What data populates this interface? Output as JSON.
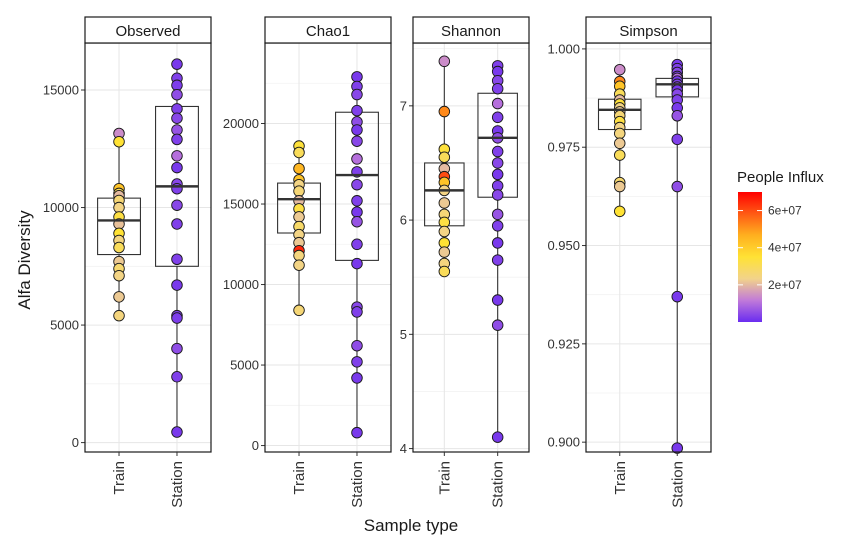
{
  "figure": {
    "xlabel": "Sample type",
    "ylabel": "Alfa Diversity"
  },
  "legend": {
    "title": "People Influx",
    "min": 0,
    "max": 70000000,
    "ticks": [
      {
        "value": 20000000,
        "label": "2e+07"
      },
      {
        "value": 40000000,
        "label": "4e+07"
      },
      {
        "value": 60000000,
        "label": "6e+07"
      }
    ],
    "colors": [
      "#6a2cf0",
      "#c17ad9",
      "#f2d38a",
      "#ffe234",
      "#ffb01f",
      "#ff5a14",
      "#ff0000"
    ]
  },
  "chart_data": [
    {
      "type": "box",
      "title": "Observed",
      "categories": [
        "Train",
        "Station"
      ],
      "ylim": [
        -400,
        17000
      ],
      "yticks": [
        0,
        5000,
        10000,
        15000
      ],
      "ytick_labels": [
        "0",
        "5000",
        "10000",
        "15000"
      ],
      "boxes": [
        {
          "category": "Train",
          "q1": 8000,
          "median": 9450,
          "q3": 10400,
          "whisker_low": 5400,
          "whisker_high": 13150
        },
        {
          "category": "Station",
          "q1": 7500,
          "median": 10900,
          "q3": 14300,
          "whisker_low": 450,
          "whisker_high": 16100
        }
      ],
      "points": [
        {
          "category": "Train",
          "y": 13150,
          "influx": 14000000
        },
        {
          "category": "Train",
          "y": 12800,
          "influx": 35000000
        },
        {
          "category": "Train",
          "y": 10800,
          "influx": 42000000
        },
        {
          "category": "Train",
          "y": 10600,
          "influx": 30000000
        },
        {
          "category": "Train",
          "y": 10500,
          "influx": 20000000
        },
        {
          "category": "Train",
          "y": 10300,
          "influx": 26000000
        },
        {
          "category": "Train",
          "y": 10000,
          "influx": 24000000
        },
        {
          "category": "Train",
          "y": 9600,
          "influx": 33000000
        },
        {
          "category": "Train",
          "y": 9300,
          "influx": 21000000
        },
        {
          "category": "Train",
          "y": 8900,
          "influx": 35000000
        },
        {
          "category": "Train",
          "y": 8600,
          "influx": 25000000
        },
        {
          "category": "Train",
          "y": 8300,
          "influx": 30000000
        },
        {
          "category": "Train",
          "y": 7700,
          "influx": 22000000
        },
        {
          "category": "Train",
          "y": 7400,
          "influx": 27000000
        },
        {
          "category": "Train",
          "y": 7100,
          "influx": 24000000
        },
        {
          "category": "Train",
          "y": 6200,
          "influx": 22000000
        },
        {
          "category": "Train",
          "y": 5400,
          "influx": 25000000
        },
        {
          "category": "Station",
          "y": 16100,
          "influx": 2000000
        },
        {
          "category": "Station",
          "y": 15500,
          "influx": 3000000
        },
        {
          "category": "Station",
          "y": 15200,
          "influx": 2500000
        },
        {
          "category": "Station",
          "y": 14800,
          "influx": 5000000
        },
        {
          "category": "Station",
          "y": 14200,
          "influx": 3000000
        },
        {
          "category": "Station",
          "y": 13800,
          "influx": 4000000
        },
        {
          "category": "Station",
          "y": 13300,
          "influx": 6000000
        },
        {
          "category": "Station",
          "y": 12900,
          "influx": 3000000
        },
        {
          "category": "Station",
          "y": 12200,
          "influx": 10000000
        },
        {
          "category": "Station",
          "y": 11700,
          "influx": 2000000
        },
        {
          "category": "Station",
          "y": 11000,
          "influx": 4000000
        },
        {
          "category": "Station",
          "y": 10800,
          "influx": 3000000
        },
        {
          "category": "Station",
          "y": 10100,
          "influx": 4000000
        },
        {
          "category": "Station",
          "y": 9300,
          "influx": 3000000
        },
        {
          "category": "Station",
          "y": 7800,
          "influx": 3000000
        },
        {
          "category": "Station",
          "y": 6700,
          "influx": 2000000
        },
        {
          "category": "Station",
          "y": 5400,
          "influx": 3000000
        },
        {
          "category": "Station",
          "y": 5300,
          "influx": 2500000
        },
        {
          "category": "Station",
          "y": 4000,
          "influx": 5000000
        },
        {
          "category": "Station",
          "y": 2800,
          "influx": 3000000
        },
        {
          "category": "Station",
          "y": 450,
          "influx": 2000000
        }
      ]
    },
    {
      "type": "box",
      "title": "Chao1",
      "categories": [
        "Train",
        "Station"
      ],
      "ylim": [
        -400,
        25000
      ],
      "yticks": [
        0,
        5000,
        10000,
        15000,
        20000
      ],
      "ytick_labels": [
        "0",
        "5000",
        "10000",
        "15000",
        "20000"
      ],
      "boxes": [
        {
          "category": "Train",
          "q1": 13200,
          "median": 15300,
          "q3": 16300,
          "whisker_low": 8400,
          "whisker_high": 18600
        },
        {
          "category": "Station",
          "q1": 11500,
          "median": 16800,
          "q3": 20700,
          "whisker_low": 800,
          "whisker_high": 22900
        }
      ],
      "points": [
        {
          "category": "Train",
          "y": 18600,
          "influx": 34000000
        },
        {
          "category": "Train",
          "y": 18200,
          "influx": 30000000
        },
        {
          "category": "Train",
          "y": 17200,
          "influx": 45000000
        },
        {
          "category": "Train",
          "y": 16500,
          "influx": 42000000
        },
        {
          "category": "Train",
          "y": 16200,
          "influx": 24000000
        },
        {
          "category": "Train",
          "y": 15800,
          "influx": 26000000
        },
        {
          "category": "Train",
          "y": 15200,
          "influx": 20000000
        },
        {
          "category": "Train",
          "y": 14700,
          "influx": 33000000
        },
        {
          "category": "Train",
          "y": 14200,
          "influx": 22000000
        },
        {
          "category": "Train",
          "y": 13600,
          "influx": 28000000
        },
        {
          "category": "Train",
          "y": 13100,
          "influx": 24000000
        },
        {
          "category": "Train",
          "y": 12600,
          "influx": 22000000
        },
        {
          "category": "Train",
          "y": 12100,
          "influx": 65000000
        },
        {
          "category": "Train",
          "y": 11800,
          "influx": 25000000
        },
        {
          "category": "Train",
          "y": 11200,
          "influx": 24000000
        },
        {
          "category": "Train",
          "y": 8400,
          "influx": 26000000
        },
        {
          "category": "Station",
          "y": 22900,
          "influx": 2000000
        },
        {
          "category": "Station",
          "y": 22300,
          "influx": 3000000
        },
        {
          "category": "Station",
          "y": 21800,
          "influx": 4000000
        },
        {
          "category": "Station",
          "y": 20800,
          "influx": 3000000
        },
        {
          "category": "Station",
          "y": 20100,
          "influx": 5000000
        },
        {
          "category": "Station",
          "y": 19600,
          "influx": 2000000
        },
        {
          "category": "Station",
          "y": 18900,
          "influx": 4000000
        },
        {
          "category": "Station",
          "y": 17800,
          "influx": 10000000
        },
        {
          "category": "Station",
          "y": 17000,
          "influx": 3000000
        },
        {
          "category": "Station",
          "y": 16200,
          "influx": 4000000
        },
        {
          "category": "Station",
          "y": 15200,
          "influx": 3000000
        },
        {
          "category": "Station",
          "y": 14500,
          "influx": 2000000
        },
        {
          "category": "Station",
          "y": 13900,
          "influx": 6000000
        },
        {
          "category": "Station",
          "y": 12500,
          "influx": 3000000
        },
        {
          "category": "Station",
          "y": 11300,
          "influx": 2000000
        },
        {
          "category": "Station",
          "y": 8600,
          "influx": 4000000
        },
        {
          "category": "Station",
          "y": 8300,
          "influx": 3000000
        },
        {
          "category": "Station",
          "y": 6200,
          "influx": 5000000
        },
        {
          "category": "Station",
          "y": 5200,
          "influx": 3000000
        },
        {
          "category": "Station",
          "y": 4200,
          "influx": 2000000
        },
        {
          "category": "Station",
          "y": 800,
          "influx": 2000000
        }
      ]
    },
    {
      "type": "box",
      "title": "Shannon",
      "categories": [
        "Train",
        "Station"
      ],
      "ylim": [
        3.97,
        7.55
      ],
      "yticks": [
        4,
        5,
        6,
        7
      ],
      "ytick_labels": [
        "4",
        "5",
        "6",
        "7"
      ],
      "boxes": [
        {
          "category": "Train",
          "q1": 5.95,
          "median": 6.26,
          "q3": 6.5,
          "whisker_low": 5.55,
          "whisker_high": 7.39
        },
        {
          "category": "Station",
          "q1": 6.2,
          "median": 6.72,
          "q3": 7.11,
          "whisker_low": 4.1,
          "whisker_high": 7.35
        }
      ],
      "points": [
        {
          "category": "Train",
          "y": 7.39,
          "influx": 14000000
        },
        {
          "category": "Train",
          "y": 6.95,
          "influx": 52000000
        },
        {
          "category": "Train",
          "y": 6.62,
          "influx": 34000000
        },
        {
          "category": "Train",
          "y": 6.55,
          "influx": 30000000
        },
        {
          "category": "Train",
          "y": 6.45,
          "influx": 20000000
        },
        {
          "category": "Train",
          "y": 6.38,
          "influx": 60000000
        },
        {
          "category": "Train",
          "y": 6.33,
          "influx": 42000000
        },
        {
          "category": "Train",
          "y": 6.26,
          "influx": 24000000
        },
        {
          "category": "Train",
          "y": 6.15,
          "influx": 22000000
        },
        {
          "category": "Train",
          "y": 6.05,
          "influx": 26000000
        },
        {
          "category": "Train",
          "y": 5.98,
          "influx": 33000000
        },
        {
          "category": "Train",
          "y": 5.9,
          "influx": 24000000
        },
        {
          "category": "Train",
          "y": 5.8,
          "influx": 35000000
        },
        {
          "category": "Train",
          "y": 5.72,
          "influx": 22000000
        },
        {
          "category": "Train",
          "y": 5.62,
          "influx": 25000000
        },
        {
          "category": "Train",
          "y": 5.55,
          "influx": 30000000
        },
        {
          "category": "Station",
          "y": 7.35,
          "influx": 3000000
        },
        {
          "category": "Station",
          "y": 7.3,
          "influx": 2000000
        },
        {
          "category": "Station",
          "y": 7.22,
          "influx": 4000000
        },
        {
          "category": "Station",
          "y": 7.15,
          "influx": 3000000
        },
        {
          "category": "Station",
          "y": 7.02,
          "influx": 10000000
        },
        {
          "category": "Station",
          "y": 6.9,
          "influx": 3000000
        },
        {
          "category": "Station",
          "y": 6.78,
          "influx": 2000000
        },
        {
          "category": "Station",
          "y": 6.72,
          "influx": 5000000
        },
        {
          "category": "Station",
          "y": 6.6,
          "influx": 3000000
        },
        {
          "category": "Station",
          "y": 6.5,
          "influx": 4000000
        },
        {
          "category": "Station",
          "y": 6.4,
          "influx": 2000000
        },
        {
          "category": "Station",
          "y": 6.3,
          "influx": 3000000
        },
        {
          "category": "Station",
          "y": 6.22,
          "influx": 4000000
        },
        {
          "category": "Station",
          "y": 6.05,
          "influx": 6000000
        },
        {
          "category": "Station",
          "y": 5.95,
          "influx": 3000000
        },
        {
          "category": "Station",
          "y": 5.8,
          "influx": 2000000
        },
        {
          "category": "Station",
          "y": 5.65,
          "influx": 3000000
        },
        {
          "category": "Station",
          "y": 5.3,
          "influx": 2000000
        },
        {
          "category": "Station",
          "y": 5.08,
          "influx": 5000000
        },
        {
          "category": "Station",
          "y": 4.1,
          "influx": 2000000
        }
      ]
    },
    {
      "type": "box",
      "title": "Simpson",
      "categories": [
        "Train",
        "Station"
      ],
      "ylim": [
        0.8975,
        1.0015
      ],
      "yticks": [
        0.9,
        0.925,
        0.95,
        0.975,
        1.0
      ],
      "ytick_labels": [
        "0.900",
        "0.925",
        "0.950",
        "0.975",
        "1.000"
      ],
      "boxes": [
        {
          "category": "Train",
          "q1": 0.9795,
          "median": 0.9845,
          "q3": 0.9872,
          "whisker_low": 0.9587,
          "whisker_high": 0.9947
        },
        {
          "category": "Station",
          "q1": 0.9878,
          "median": 0.991,
          "q3": 0.9925,
          "whisker_low": 0.8985,
          "whisker_high": 0.996
        }
      ],
      "points": [
        {
          "category": "Train",
          "y": 0.9947,
          "influx": 14000000
        },
        {
          "category": "Train",
          "y": 0.9917,
          "influx": 52000000
        },
        {
          "category": "Train",
          "y": 0.9905,
          "influx": 42000000
        },
        {
          "category": "Train",
          "y": 0.9885,
          "influx": 30000000
        },
        {
          "category": "Train",
          "y": 0.987,
          "influx": 20000000
        },
        {
          "category": "Train",
          "y": 0.986,
          "influx": 34000000
        },
        {
          "category": "Train",
          "y": 0.985,
          "influx": 24000000
        },
        {
          "category": "Train",
          "y": 0.984,
          "influx": 22000000
        },
        {
          "category": "Train",
          "y": 0.983,
          "influx": 26000000
        },
        {
          "category": "Train",
          "y": 0.9815,
          "influx": 33000000
        },
        {
          "category": "Train",
          "y": 0.98,
          "influx": 24000000
        },
        {
          "category": "Train",
          "y": 0.9785,
          "influx": 25000000
        },
        {
          "category": "Train",
          "y": 0.976,
          "influx": 22000000
        },
        {
          "category": "Train",
          "y": 0.973,
          "influx": 30000000
        },
        {
          "category": "Train",
          "y": 0.966,
          "influx": 27000000
        },
        {
          "category": "Train",
          "y": 0.965,
          "influx": 22000000
        },
        {
          "category": "Train",
          "y": 0.9587,
          "influx": 35000000
        },
        {
          "category": "Station",
          "y": 0.996,
          "influx": 2000000
        },
        {
          "category": "Station",
          "y": 0.995,
          "influx": 3000000
        },
        {
          "category": "Station",
          "y": 0.994,
          "influx": 4000000
        },
        {
          "category": "Station",
          "y": 0.993,
          "influx": 3000000
        },
        {
          "category": "Station",
          "y": 0.9925,
          "influx": 10000000
        },
        {
          "category": "Station",
          "y": 0.9918,
          "influx": 2000000
        },
        {
          "category": "Station",
          "y": 0.991,
          "influx": 3000000
        },
        {
          "category": "Station",
          "y": 0.9903,
          "influx": 5000000
        },
        {
          "category": "Station",
          "y": 0.9895,
          "influx": 2000000
        },
        {
          "category": "Station",
          "y": 0.9885,
          "influx": 4000000
        },
        {
          "category": "Station",
          "y": 0.987,
          "influx": 3000000
        },
        {
          "category": "Station",
          "y": 0.985,
          "influx": 2000000
        },
        {
          "category": "Station",
          "y": 0.983,
          "influx": 6000000
        },
        {
          "category": "Station",
          "y": 0.977,
          "influx": 3000000
        },
        {
          "category": "Station",
          "y": 0.965,
          "influx": 5000000
        },
        {
          "category": "Station",
          "y": 0.937,
          "influx": 2000000
        },
        {
          "category": "Station",
          "y": 0.8985,
          "influx": 2000000
        }
      ]
    }
  ]
}
